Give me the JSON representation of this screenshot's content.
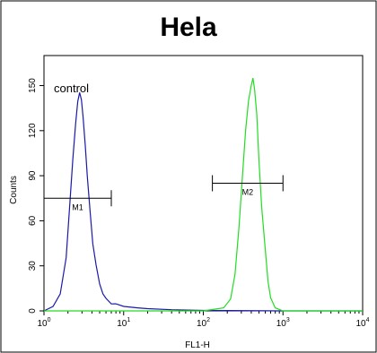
{
  "chart_data": {
    "type": "line",
    "title": "Hela",
    "xlabel": "FL1-H",
    "ylabel": "Counts",
    "x_scale": "log",
    "xlim": [
      1,
      10000
    ],
    "ylim": [
      0,
      170
    ],
    "x_ticks": [
      {
        "value": 1,
        "base": "10",
        "exp": "0"
      },
      {
        "value": 10,
        "base": "10",
        "exp": "1"
      },
      {
        "value": 100,
        "base": "10",
        "exp": "2"
      },
      {
        "value": 1000,
        "base": "10",
        "exp": "3"
      },
      {
        "value": 10000,
        "base": "10",
        "exp": "4"
      }
    ],
    "y_ticks": [
      {
        "value": 0,
        "label": "0"
      },
      {
        "value": 30,
        "label": "30"
      },
      {
        "value": 60,
        "label": "60"
      },
      {
        "value": 90,
        "label": "90"
      },
      {
        "value": 120,
        "label": "120"
      },
      {
        "value": 150,
        "label": "150"
      }
    ],
    "annotation": "control",
    "series": [
      {
        "color": "#1a1aa8",
        "x": [
          1,
          1.3,
          1.6,
          1.9,
          2.1,
          2.3,
          2.5,
          2.65,
          2.8,
          2.95,
          3.1,
          3.3,
          3.5,
          3.8,
          4.1,
          4.5,
          5,
          5.5,
          6,
          7,
          8,
          10,
          15,
          20,
          40,
          100,
          1000,
          10000
        ],
        "y": [
          0,
          3,
          12,
          35,
          70,
          100,
          125,
          140,
          145,
          141,
          128,
          110,
          90,
          65,
          45,
          30,
          18,
          12,
          8,
          5,
          4,
          3,
          2,
          1.5,
          0.8,
          0.3,
          0,
          0
        ]
      },
      {
        "color": "#22dd22",
        "x": [
          1,
          100,
          180,
          220,
          250,
          280,
          310,
          340,
          370,
          400,
          420,
          440,
          470,
          500,
          540,
          600,
          650,
          700,
          800,
          1000,
          10000
        ],
        "y": [
          0,
          0,
          2,
          8,
          25,
          55,
          90,
          120,
          140,
          150,
          155,
          148,
          130,
          100,
          70,
          40,
          20,
          8,
          2,
          0,
          0
        ]
      }
    ],
    "markers": [
      {
        "label": "M1",
        "x1": 1,
        "x2": 7,
        "y": 75
      },
      {
        "label": "M2",
        "x1": 130,
        "x2": 1000,
        "y": 85
      }
    ]
  }
}
